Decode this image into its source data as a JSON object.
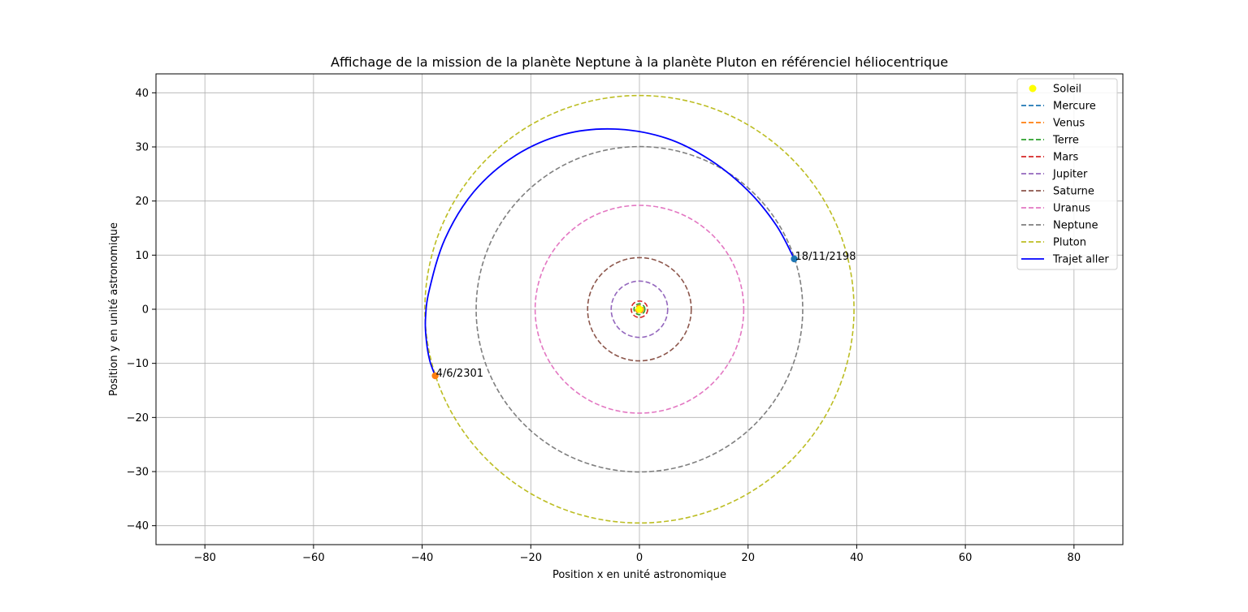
{
  "chart_data": {
    "type": "line",
    "title": "Affichage de la mission de la planète Neptune à la planète Pluton en référenciel héliocentrique",
    "xlabel": "Position x en unité astronomique",
    "ylabel": "Position y en unité astronomique",
    "xlim": [
      -89,
      89
    ],
    "ylim": [
      -43.5,
      43.5
    ],
    "xticks": [
      -80,
      -60,
      -40,
      -20,
      0,
      20,
      40,
      60,
      80
    ],
    "yticks": [
      -40,
      -30,
      -20,
      -10,
      0,
      10,
      20,
      30,
      40
    ],
    "xtick_labels": [
      "−80",
      "−60",
      "−40",
      "−20",
      "0",
      "20",
      "40",
      "60",
      "80"
    ],
    "ytick_labels": [
      "−40",
      "−30",
      "−20",
      "−10",
      "0",
      "10",
      "20",
      "30",
      "40"
    ],
    "grid": true,
    "legend_position": "top-right",
    "sun": {
      "name": "Soleil",
      "x": 0,
      "y": 0,
      "color": "#ffff00"
    },
    "orbits": [
      {
        "name": "Mercure",
        "radius": 0.39,
        "color": "#1f77b4"
      },
      {
        "name": "Venus",
        "radius": 0.72,
        "color": "#ff7f0e"
      },
      {
        "name": "Terre",
        "radius": 1.0,
        "color": "#2ca02c"
      },
      {
        "name": "Mars",
        "radius": 1.52,
        "color": "#d62728"
      },
      {
        "name": "Jupiter",
        "radius": 5.2,
        "color": "#9467bd"
      },
      {
        "name": "Saturne",
        "radius": 9.54,
        "color": "#8c564b"
      },
      {
        "name": "Uranus",
        "radius": 19.2,
        "color": "#e377c2"
      },
      {
        "name": "Neptune",
        "radius": 30.06,
        "color": "#7f7f7f"
      },
      {
        "name": "Pluton",
        "radius": 39.5,
        "color": "#bcbd22"
      }
    ],
    "trajectory": {
      "name": "Trajet aller",
      "color": "#0000ff",
      "points": [
        [
          28.5,
          9.3
        ],
        [
          25.2,
          15.5
        ],
        [
          20.0,
          21.9
        ],
        [
          13.0,
          27.6
        ],
        [
          5.0,
          31.6
        ],
        [
          -4.5,
          33.3
        ],
        [
          -14.0,
          32.3
        ],
        [
          -23.0,
          28.3
        ],
        [
          -30.5,
          21.7
        ],
        [
          -35.8,
          13.0
        ],
        [
          -38.7,
          3.5
        ],
        [
          -39.4,
          -2.0
        ],
        [
          -39.2,
          -6.0
        ],
        [
          -38.6,
          -9.5
        ],
        [
          -37.6,
          -12.3
        ]
      ]
    },
    "markers": [
      {
        "label": "18/11/2198",
        "x": 28.5,
        "y": 9.3,
        "color": "#1f77b4"
      },
      {
        "label": "4/6/2301",
        "x": -37.6,
        "y": -12.3,
        "color": "#ff7f0e"
      }
    ]
  }
}
